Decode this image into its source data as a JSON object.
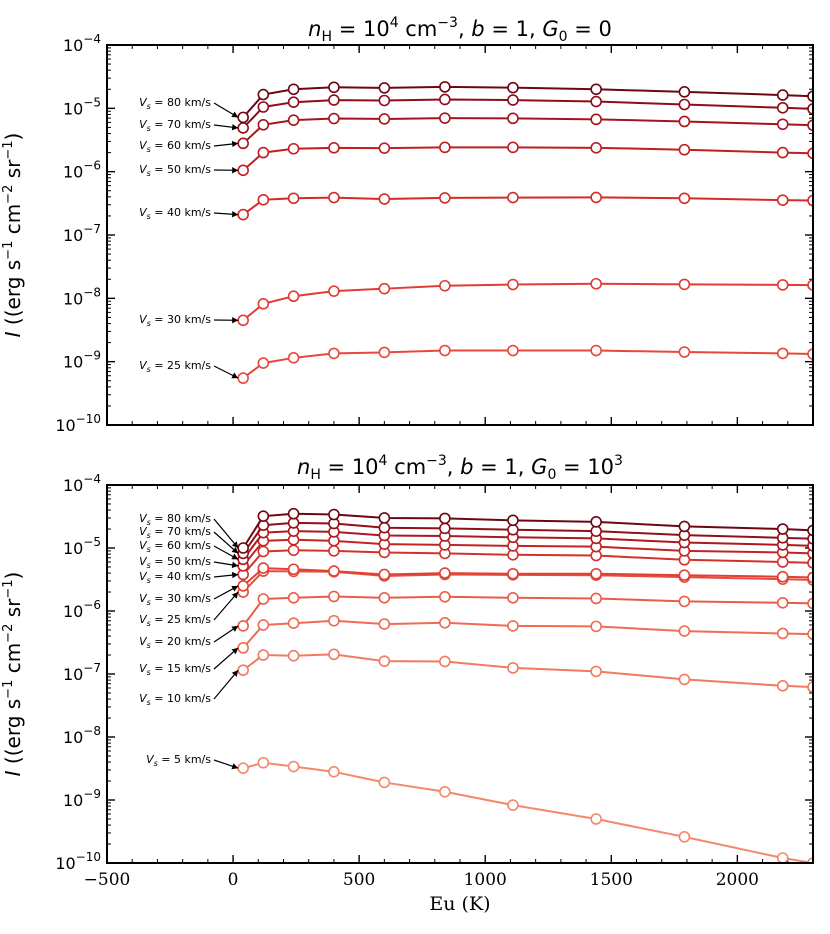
{
  "chart_data": [
    {
      "type": "line",
      "title": "n_H = 10^4 cm^-3, b = 1, G_0 = 0",
      "title_parts": {
        "n_sub": "H",
        "exp": "4",
        "unit": "cm",
        "unit_exp": "−3",
        "rest": ", b = 1, G",
        "g_sub": "0",
        "g_val": "= 0"
      },
      "ylabel": "I ((erg s^-1 cm^-2 sr^-1)",
      "xlabel": "",
      "yscale": "log",
      "xlim": [
        -500,
        2300
      ],
      "ylim_exp": [
        -10,
        -4
      ],
      "ytick_labels": [
        "10−10",
        "10−9",
        "10−8",
        "10−7",
        "10−6",
        "10−5",
        "10−4"
      ],
      "xtick_values": [
        -500,
        0,
        500,
        1000,
        1500,
        2000
      ],
      "xtick_labels": [],
      "x": [
        40,
        120,
        240,
        400,
        600,
        840,
        1110,
        1440,
        1790,
        2180,
        2300
      ],
      "series": [
        {
          "name": "Vs = 25 km/s",
          "label": "V",
          "label_sub": "s",
          "label_val": " = 25 km/s",
          "color": "#e8473a",
          "values": [
            5.5e-10,
            9.5e-10,
            1.15e-09,
            1.35e-09,
            1.4e-09,
            1.5e-09,
            1.5e-09,
            1.5e-09,
            1.42e-09,
            1.35e-09,
            1.32e-09
          ]
        },
        {
          "name": "Vs = 30 km/s",
          "label": "V",
          "label_sub": "s",
          "label_val": " = 30 km/s",
          "color": "#e23b32",
          "values": [
            4.5e-09,
            8.2e-09,
            1.08e-08,
            1.3e-08,
            1.42e-08,
            1.58e-08,
            1.65e-08,
            1.7e-08,
            1.66e-08,
            1.63e-08,
            1.62e-08
          ]
        },
        {
          "name": "Vs = 40 km/s",
          "label": "V",
          "label_sub": "s",
          "label_val": " = 40 km/s",
          "color": "#d42b27",
          "values": [
            2.1e-07,
            3.6e-07,
            3.8e-07,
            3.9e-07,
            3.7e-07,
            3.85e-07,
            3.9e-07,
            3.92e-07,
            3.8e-07,
            3.55e-07,
            3.5e-07
          ]
        },
        {
          "name": "Vs = 50 km/s",
          "label": "V",
          "label_sub": "s",
          "label_val": " = 50 km/s",
          "color": "#c01e21",
          "values": [
            1.05e-06,
            2e-06,
            2.3e-06,
            2.38e-06,
            2.35e-06,
            2.42e-06,
            2.42e-06,
            2.38e-06,
            2.22e-06,
            2e-06,
            1.95e-06
          ]
        },
        {
          "name": "Vs = 60 km/s",
          "label": "V",
          "label_sub": "s",
          "label_val": " = 60 km/s",
          "color": "#a8131b",
          "values": [
            2.8e-06,
            5.5e-06,
            6.5e-06,
            6.9e-06,
            6.8e-06,
            7e-06,
            6.95e-06,
            6.7e-06,
            6.2e-06,
            5.6e-06,
            5.4e-06
          ]
        },
        {
          "name": "Vs = 70 km/s",
          "label": "V",
          "label_sub": "s",
          "label_val": " = 70 km/s",
          "color": "#8d0c17",
          "values": [
            4.9e-06,
            1.05e-05,
            1.25e-05,
            1.35e-05,
            1.33e-05,
            1.38e-05,
            1.35e-05,
            1.28e-05,
            1.15e-05,
            1.02e-05,
            9.8e-06
          ]
        },
        {
          "name": "Vs = 80 km/s",
          "label": "V",
          "label_sub": "s",
          "label_val": " = 80 km/s",
          "color": "#6b0612",
          "values": [
            7.2e-06,
            1.65e-05,
            2e-05,
            2.15e-05,
            2.1e-05,
            2.18e-05,
            2.12e-05,
            2e-05,
            1.82e-05,
            1.62e-05,
            1.55e-05
          ]
        }
      ]
    },
    {
      "type": "line",
      "title": "n_H = 10^4 cm^-3, b = 1, G_0 = 10^3",
      "title_parts": {
        "n_sub": "H",
        "exp": "4",
        "unit": "cm",
        "unit_exp": "−3",
        "rest": ", b = 1, G",
        "g_sub": "0",
        "g_val": "= 10",
        "g_exp": "3"
      },
      "ylabel": "I ((erg s^-1 cm^-2 sr^-1)",
      "xlabel": "Eu (K)",
      "yscale": "log",
      "xlim": [
        -500,
        2300
      ],
      "ylim_exp": [
        -10,
        -4
      ],
      "ytick_labels": [
        "10−10",
        "10−9",
        "10−8",
        "10−7",
        "10−6",
        "10−5",
        "10−4"
      ],
      "xtick_values": [
        -500,
        0,
        500,
        1000,
        1500,
        2000
      ],
      "xtick_labels": [
        "−500",
        "0",
        "500",
        "1000",
        "1500",
        "2000"
      ],
      "x": [
        40,
        120,
        240,
        400,
        600,
        840,
        1110,
        1440,
        1790,
        2180,
        2300
      ],
      "series": [
        {
          "name": "Vs = 5 km/s",
          "label": "V",
          "label_sub": "s",
          "label_val": " = 5 km/s",
          "color": "#f4896a",
          "values": [
            3.2e-09,
            3.9e-09,
            3.4e-09,
            2.8e-09,
            1.9e-09,
            1.35e-09,
            8.3e-10,
            5e-10,
            2.6e-10,
            1.2e-10,
            1e-10
          ]
        },
        {
          "name": "Vs = 10 km/s",
          "label": "V",
          "label_sub": "s",
          "label_val": " = 10 km/s",
          "color": "#f27a5e",
          "values": [
            1.15e-07,
            2e-07,
            1.95e-07,
            2.05e-07,
            1.6e-07,
            1.58e-07,
            1.25e-07,
            1.1e-07,
            8.2e-08,
            6.5e-08,
            6.2e-08
          ]
        },
        {
          "name": "Vs = 15 km/s",
          "label": "V",
          "label_sub": "s",
          "label_val": " = 15 km/s",
          "color": "#ef6b52",
          "values": [
            2.6e-07,
            6e-07,
            6.4e-07,
            7e-07,
            6.2e-07,
            6.5e-07,
            5.8e-07,
            5.7e-07,
            4.8e-07,
            4.4e-07,
            4.3e-07
          ]
        },
        {
          "name": "Vs = 20 km/s",
          "label": "V",
          "label_sub": "s",
          "label_val": " = 20 km/s",
          "color": "#eb5c47",
          "values": [
            5.8e-07,
            1.55e-06,
            1.62e-06,
            1.7e-06,
            1.62e-06,
            1.68e-06,
            1.62e-06,
            1.58e-06,
            1.42e-06,
            1.35e-06,
            1.32e-06
          ]
        },
        {
          "name": "Vs = 25 km/s",
          "label": "V",
          "label_sub": "s",
          "label_val": " = 25 km/s",
          "color": "#e64d3c",
          "values": [
            2e-06,
            4.3e-06,
            4.25e-06,
            4.2e-06,
            3.6e-06,
            3.8e-06,
            3.75e-06,
            3.7e-06,
            3.45e-06,
            3.2e-06,
            3.1e-06
          ]
        },
        {
          "name": "Vs = 30 km/s",
          "label": "V",
          "label_sub": "s",
          "label_val": " = 30 km/s",
          "color": "#e04033",
          "values": [
            2.5e-06,
            4.8e-06,
            4.6e-06,
            4.3e-06,
            3.8e-06,
            4e-06,
            3.9e-06,
            3.9e-06,
            3.7e-06,
            3.5e-06,
            3.4e-06
          ]
        },
        {
          "name": "Vs = 40 km/s",
          "label": "V",
          "label_sub": "s",
          "label_val": " = 40 km/s",
          "color": "#d3312b",
          "values": [
            3.8e-06,
            8.8e-06,
            9.2e-06,
            9e-06,
            8.5e-06,
            8.2e-06,
            7.8e-06,
            7.6e-06,
            6.5e-06,
            6e-06,
            5.8e-06
          ]
        },
        {
          "name": "Vs = 50 km/s",
          "label": "V",
          "label_sub": "s",
          "label_val": " = 50 km/s",
          "color": "#c22424",
          "values": [
            5.2e-06,
            1.3e-05,
            1.35e-05,
            1.3e-05,
            1.15e-05,
            1.12e-05,
            1.08e-05,
            1.05e-05,
            9e-06,
            8.5e-06,
            8.2e-06
          ]
        },
        {
          "name": "Vs = 60 km/s",
          "label": "V",
          "label_sub": "s",
          "label_val": " = 60 km/s",
          "color": "#ad181e",
          "values": [
            6.6e-06,
            1.75e-05,
            1.85e-05,
            1.8e-05,
            1.58e-05,
            1.55e-05,
            1.48e-05,
            1.42e-05,
            1.22e-05,
            1.12e-05,
            1.08e-05
          ]
        },
        {
          "name": "Vs = 70 km/s",
          "label": "V",
          "label_sub": "s",
          "label_val": " = 70 km/s",
          "color": "#910f18",
          "values": [
            8.2e-06,
            2.3e-05,
            2.5e-05,
            2.45e-05,
            2.1e-05,
            2.05e-05,
            1.95e-05,
            1.85e-05,
            1.6e-05,
            1.45e-05,
            1.4e-05
          ]
        },
        {
          "name": "Vs = 80 km/s",
          "label": "V",
          "label_sub": "s",
          "label_val": " = 80 km/s",
          "color": "#6b0612",
          "values": [
            1e-05,
            3.2e-05,
            3.5e-05,
            3.4e-05,
            3e-05,
            2.95e-05,
            2.75e-05,
            2.6e-05,
            2.2e-05,
            2e-05,
            1.9e-05
          ]
        }
      ]
    }
  ]
}
